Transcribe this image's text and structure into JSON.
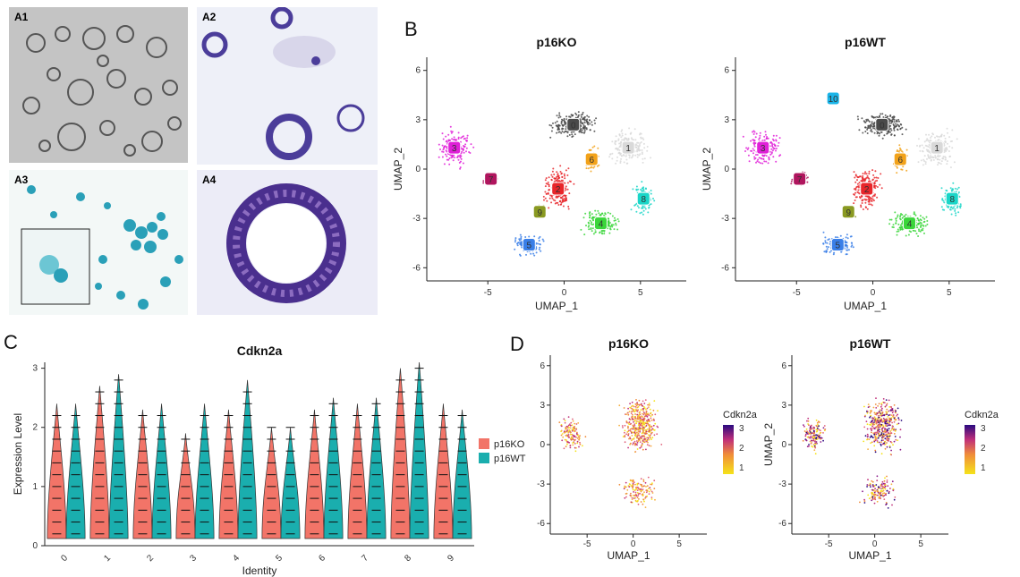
{
  "panels": {
    "A1": "A1",
    "A2": "A2",
    "A3": "A3",
    "A4": "A4",
    "B": "B",
    "C": "C",
    "D": "D"
  },
  "colors": {
    "c0": "#4a4a4a",
    "c1": "#d9d9d9",
    "c2": "#e8262a",
    "c3": "#e020d8",
    "c4": "#3ad63a",
    "c5": "#3a7fe8",
    "c6": "#f2a21a",
    "c7": "#b0155e",
    "c8": "#1ad6c8",
    "c9": "#8a9a22",
    "c10": "#1ab4e8",
    "ko": "#f27468",
    "wt": "#1aaeae"
  },
  "umapB": {
    "panels": [
      {
        "title": "p16KO",
        "labels": [
          "0",
          "1",
          "2",
          "3",
          "4",
          "5",
          "6",
          "7",
          "8",
          "9"
        ]
      },
      {
        "title": "p16WT",
        "labels": [
          "0",
          "1",
          "2",
          "3",
          "4",
          "5",
          "6",
          "7",
          "8",
          "9",
          "10"
        ]
      }
    ],
    "xlabel": "UMAP_1",
    "ylabel": "UMAP_2",
    "xticks": [
      "-5",
      "0",
      "5"
    ],
    "yticks": [
      "6",
      "3",
      "0",
      "-3",
      "-6"
    ]
  },
  "chart_data": [
    {
      "type": "violin",
      "title": "Cdkn2a",
      "xlabel": "Identity",
      "ylabel": "Expression Level",
      "ylim": [
        0,
        3.1
      ],
      "yticks": [
        "0",
        "1",
        "2",
        "3"
      ],
      "categories": [
        "0",
        "1",
        "2",
        "3",
        "4",
        "5",
        "6",
        "7",
        "8",
        "9"
      ],
      "series": [
        {
          "name": "p16KO",
          "max": [
            2.4,
            2.7,
            2.3,
            1.9,
            2.3,
            2.0,
            2.3,
            2.4,
            3.0,
            2.4
          ]
        },
        {
          "name": "p16WT",
          "max": [
            2.4,
            2.9,
            2.4,
            2.4,
            2.8,
            2.0,
            2.5,
            2.5,
            3.1,
            2.3
          ]
        }
      ],
      "legend": "right"
    },
    {
      "type": "scatter",
      "panels": [
        {
          "title": "p16KO"
        },
        {
          "title": "p16WT"
        }
      ],
      "xlabel": "UMAP_1",
      "ylabel": "UMAP_2",
      "xticks": [
        "-5",
        "0",
        "5"
      ],
      "yticks": [
        "6",
        "3",
        "0",
        "-3",
        "-6"
      ],
      "colorbar": {
        "title": "Cdkn2a",
        "ticks": [
          "3",
          "2",
          "1"
        ]
      }
    }
  ]
}
